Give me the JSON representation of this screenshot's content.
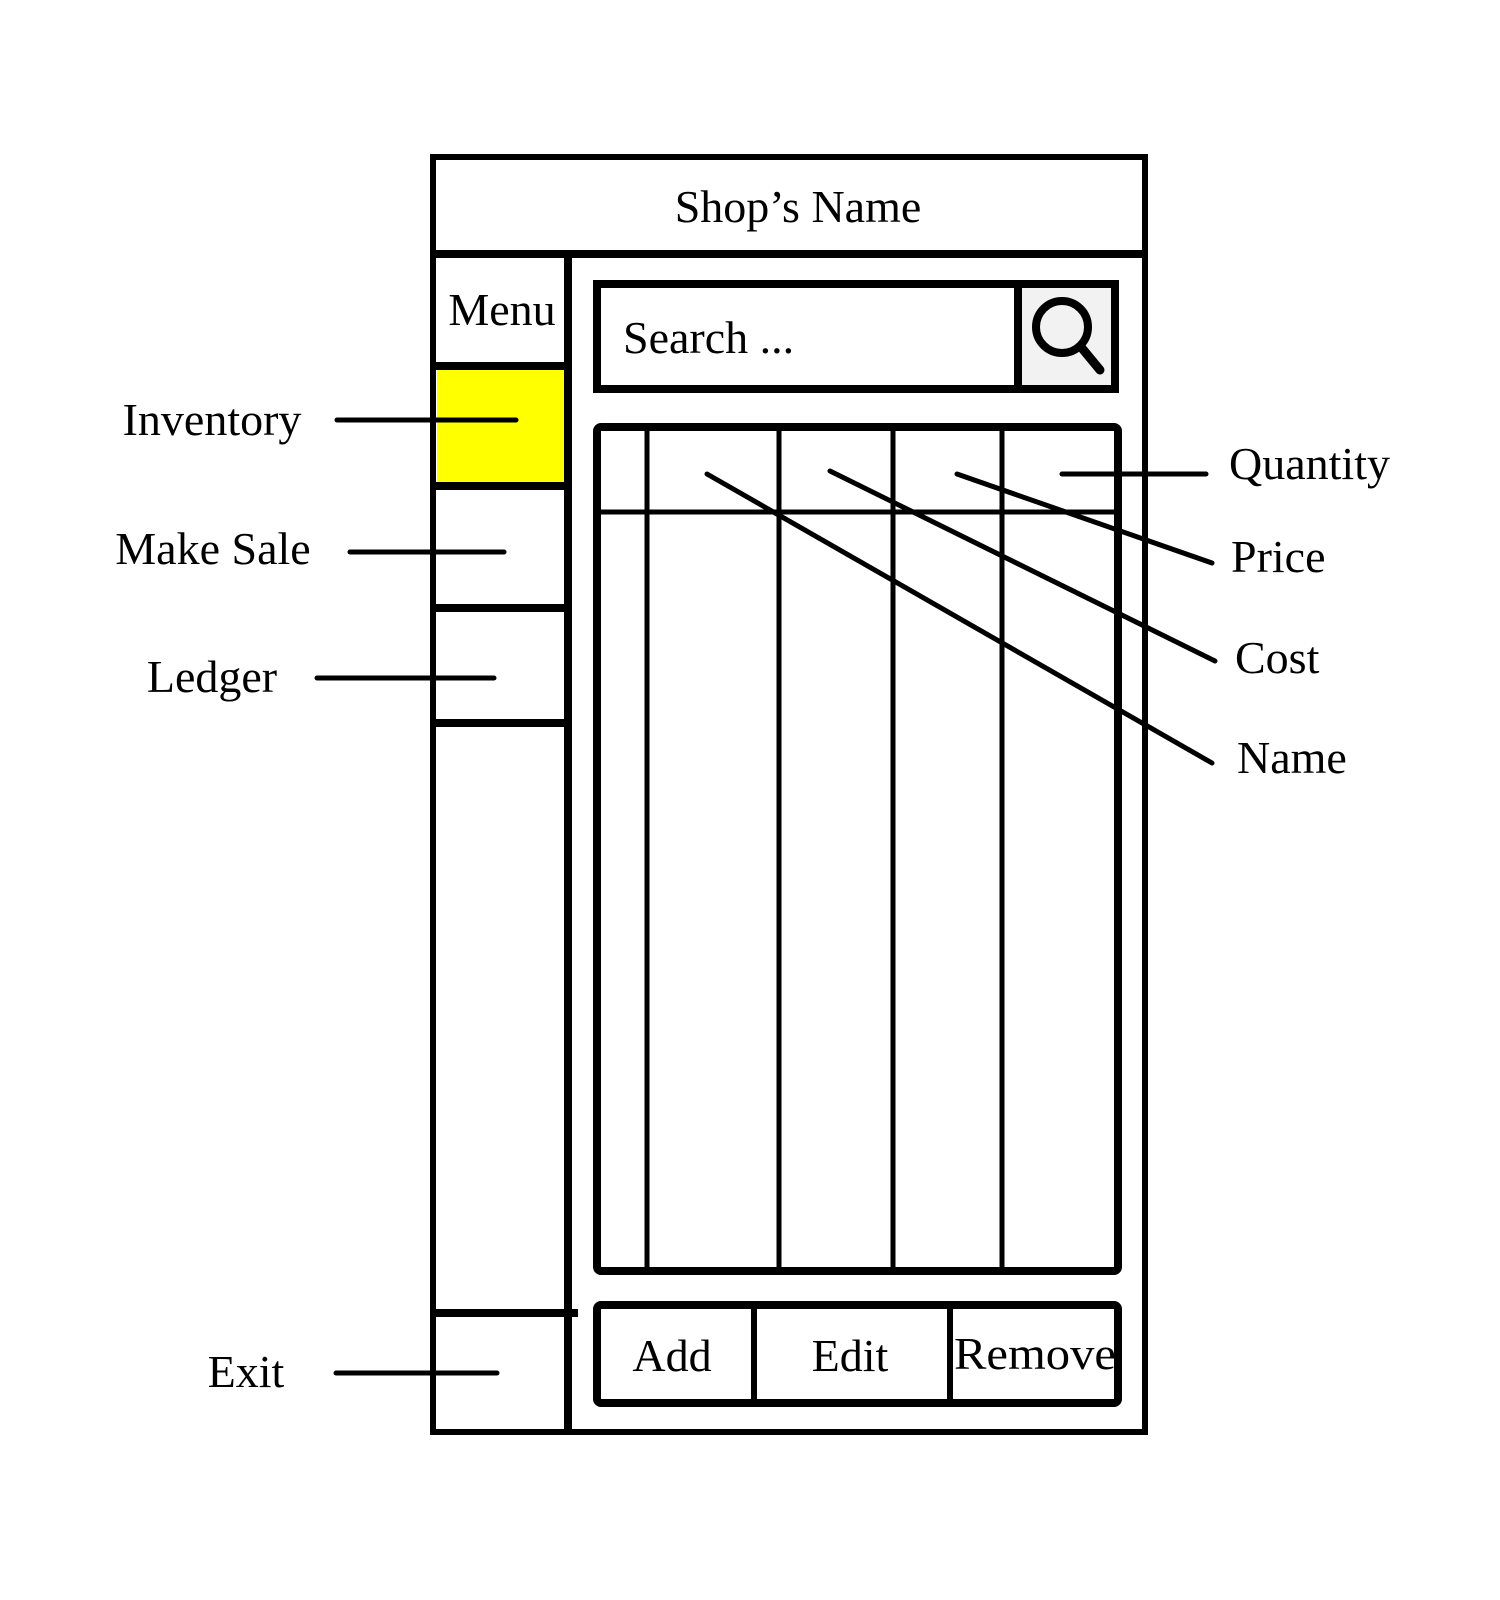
{
  "app": {
    "title": "Shop’s Name"
  },
  "sidebar": {
    "menu_label": "Menu",
    "items": [
      {
        "id": "inventory",
        "label": "Inventory",
        "active": true
      },
      {
        "id": "make-sale",
        "label": "Make Sale",
        "active": false
      },
      {
        "id": "ledger",
        "label": "Ledger",
        "active": false
      }
    ],
    "exit_label": "Exit"
  },
  "search": {
    "placeholder": "Search ...",
    "icon": "search-icon"
  },
  "table": {
    "columns": [
      "Name",
      "Cost",
      "Price",
      "Quantity"
    ]
  },
  "buttons": {
    "add": "Add",
    "edit": "Edit",
    "remove": "Remove"
  },
  "colors": {
    "active_item": "#ffff00",
    "stroke": "#000000",
    "search_button_bg": "#f2f2f2"
  }
}
